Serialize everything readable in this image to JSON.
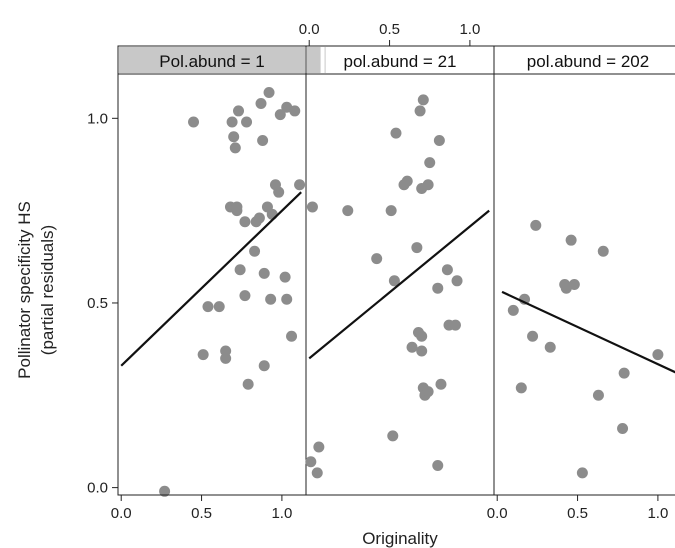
{
  "chart_data": {
    "type": "scatter",
    "ylabel_line1": "Pollinator specificity HS",
    "ylabel_line2": "(partial residuals)",
    "xlabel": "Originality",
    "xlim": [
      -0.02,
      1.15
    ],
    "ylim": [
      -0.02,
      1.12
    ],
    "x_ticks": [
      "0.0",
      "0.5",
      "1.0"
    ],
    "y_ticks": [
      "0.0",
      "0.5",
      "1.0"
    ],
    "point_color": "#8c8c8c",
    "line_color": "#111111",
    "strip_color": "#c8c8c8",
    "panels": [
      {
        "strip": "Pol.abund = 1",
        "strip_fill": 1.0,
        "fit": {
          "x": [
            0.0,
            1.12
          ],
          "y": [
            0.33,
            0.8
          ]
        },
        "points": [
          {
            "x": 0.27,
            "y": -0.01
          },
          {
            "x": 0.45,
            "y": 0.99
          },
          {
            "x": 0.51,
            "y": 0.36
          },
          {
            "x": 0.54,
            "y": 0.49
          },
          {
            "x": 0.61,
            "y": 0.49
          },
          {
            "x": 0.65,
            "y": 0.37
          },
          {
            "x": 0.65,
            "y": 0.35
          },
          {
            "x": 0.68,
            "y": 0.76
          },
          {
            "x": 0.69,
            "y": 0.99
          },
          {
            "x": 0.7,
            "y": 0.95
          },
          {
            "x": 0.71,
            "y": 0.92
          },
          {
            "x": 0.72,
            "y": 0.76
          },
          {
            "x": 0.72,
            "y": 0.75
          },
          {
            "x": 0.73,
            "y": 1.02
          },
          {
            "x": 0.74,
            "y": 0.59
          },
          {
            "x": 0.77,
            "y": 0.52
          },
          {
            "x": 0.77,
            "y": 0.72
          },
          {
            "x": 0.78,
            "y": 0.99
          },
          {
            "x": 0.79,
            "y": 0.28
          },
          {
            "x": 0.83,
            "y": 0.64
          },
          {
            "x": 0.84,
            "y": 0.72
          },
          {
            "x": 0.86,
            "y": 0.73
          },
          {
            "x": 0.87,
            "y": 1.04
          },
          {
            "x": 0.88,
            "y": 0.94
          },
          {
            "x": 0.89,
            "y": 0.58
          },
          {
            "x": 0.89,
            "y": 0.33
          },
          {
            "x": 0.91,
            "y": 0.76
          },
          {
            "x": 0.92,
            "y": 1.07
          },
          {
            "x": 0.93,
            "y": 0.51
          },
          {
            "x": 0.94,
            "y": 0.74
          },
          {
            "x": 0.96,
            "y": 0.82
          },
          {
            "x": 0.98,
            "y": 0.8
          },
          {
            "x": 0.99,
            "y": 1.01
          },
          {
            "x": 1.02,
            "y": 0.57
          },
          {
            "x": 1.03,
            "y": 0.51
          },
          {
            "x": 1.03,
            "y": 1.03
          },
          {
            "x": 1.06,
            "y": 0.41
          },
          {
            "x": 1.08,
            "y": 1.02
          },
          {
            "x": 1.11,
            "y": 0.82
          }
        ]
      },
      {
        "strip": "pol.abund = 21",
        "strip_fill": 0.1,
        "fit": {
          "x": [
            0.0,
            1.12
          ],
          "y": [
            0.35,
            0.75
          ]
        },
        "points": [
          {
            "x": 0.01,
            "y": 0.07
          },
          {
            "x": 0.02,
            "y": 0.76
          },
          {
            "x": 0.05,
            "y": 0.04
          },
          {
            "x": 0.06,
            "y": 0.11
          },
          {
            "x": 0.24,
            "y": 0.75
          },
          {
            "x": 0.42,
            "y": 0.62
          },
          {
            "x": 0.51,
            "y": 0.75
          },
          {
            "x": 0.52,
            "y": 0.14
          },
          {
            "x": 0.53,
            "y": 0.56
          },
          {
            "x": 0.54,
            "y": 0.96
          },
          {
            "x": 0.59,
            "y": 0.82
          },
          {
            "x": 0.61,
            "y": 0.83
          },
          {
            "x": 0.64,
            "y": 0.38
          },
          {
            "x": 0.67,
            "y": 0.65
          },
          {
            "x": 0.68,
            "y": 0.42
          },
          {
            "x": 0.69,
            "y": 1.02
          },
          {
            "x": 0.7,
            "y": 0.81
          },
          {
            "x": 0.7,
            "y": 0.41
          },
          {
            "x": 0.7,
            "y": 0.37
          },
          {
            "x": 0.71,
            "y": 1.05
          },
          {
            "x": 0.71,
            "y": 0.27
          },
          {
            "x": 0.72,
            "y": 0.25
          },
          {
            "x": 0.74,
            "y": 0.82
          },
          {
            "x": 0.74,
            "y": 0.26
          },
          {
            "x": 0.75,
            "y": 0.88
          },
          {
            "x": 0.8,
            "y": 0.54
          },
          {
            "x": 0.8,
            "y": 0.06
          },
          {
            "x": 0.81,
            "y": 0.94
          },
          {
            "x": 0.82,
            "y": 0.28
          },
          {
            "x": 0.86,
            "y": 0.59
          },
          {
            "x": 0.87,
            "y": 0.44
          },
          {
            "x": 0.91,
            "y": 0.44
          },
          {
            "x": 0.92,
            "y": 0.56
          }
        ]
      },
      {
        "strip": "pol.abund = 202",
        "strip_fill": 0.0,
        "fit": {
          "x": [
            0.03,
            1.12
          ],
          "y": [
            0.53,
            0.31
          ]
        },
        "points": [
          {
            "x": 0.1,
            "y": 0.48
          },
          {
            "x": 0.15,
            "y": 0.27
          },
          {
            "x": 0.17,
            "y": 0.51
          },
          {
            "x": 0.22,
            "y": 0.41
          },
          {
            "x": 0.24,
            "y": 0.71
          },
          {
            "x": 0.33,
            "y": 0.38
          },
          {
            "x": 0.42,
            "y": 0.55
          },
          {
            "x": 0.43,
            "y": 0.54
          },
          {
            "x": 0.46,
            "y": 0.67
          },
          {
            "x": 0.48,
            "y": 0.55
          },
          {
            "x": 0.53,
            "y": 0.04
          },
          {
            "x": 0.63,
            "y": 0.25
          },
          {
            "x": 0.66,
            "y": 0.64
          },
          {
            "x": 0.78,
            "y": 0.16
          },
          {
            "x": 0.79,
            "y": 0.31
          },
          {
            "x": 1.0,
            "y": 0.36
          }
        ]
      }
    ]
  }
}
